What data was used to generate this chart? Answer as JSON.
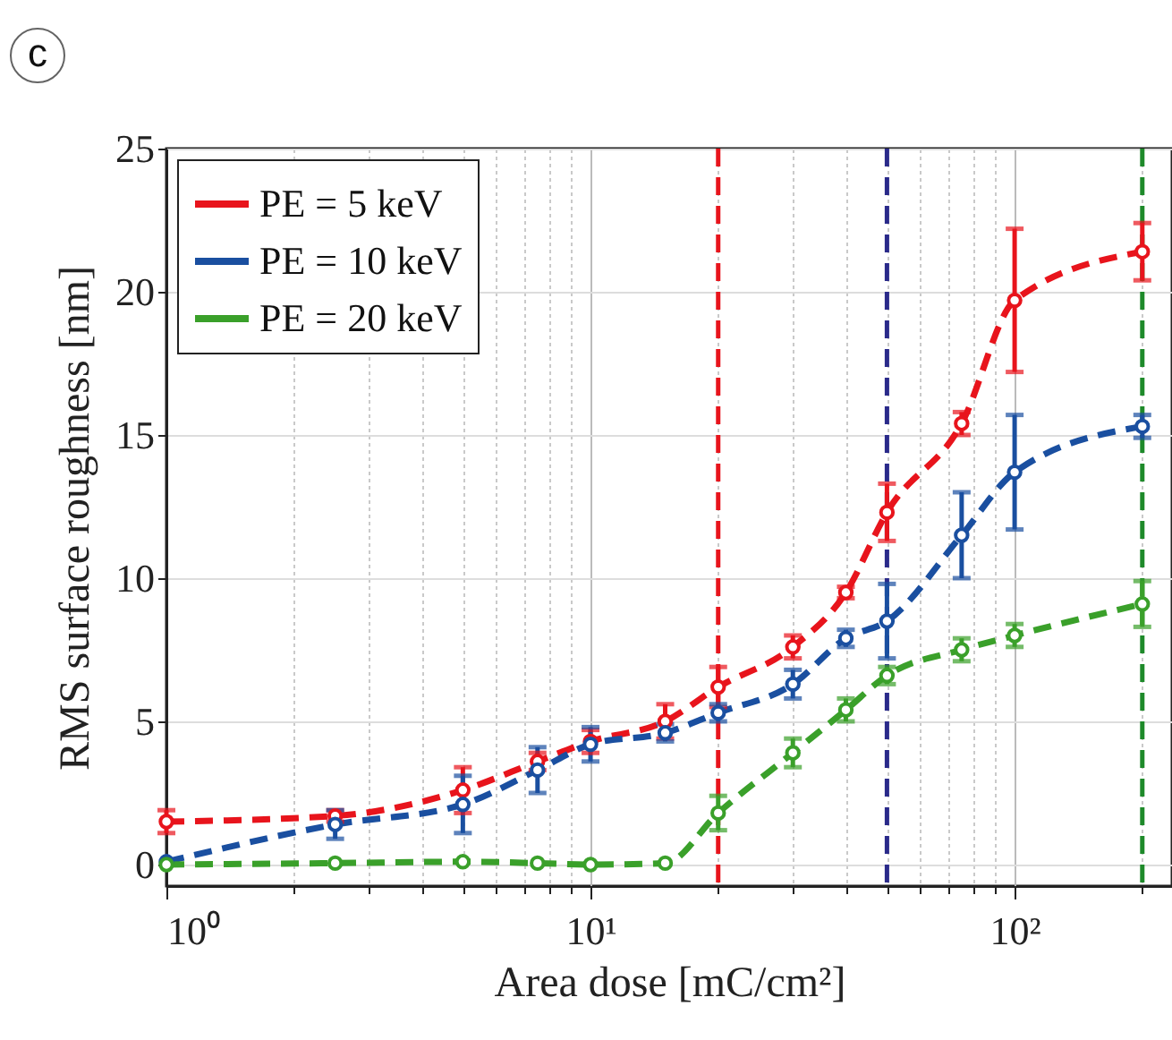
{
  "chart_data": {
    "type": "line",
    "xlabel": "Area dose [mC/cm²]",
    "ylabel": "RMS surface roughness [nm]",
    "annotations": [
      "c"
    ],
    "x": [
      1,
      2.5,
      5,
      7.5,
      10,
      15,
      20,
      30,
      40,
      50,
      75,
      100,
      200
    ],
    "series": [
      {
        "name": "PE =   5 keV",
        "color": "#e8141c",
        "values": [
          1.5,
          1.7,
          2.6,
          3.6,
          4.3,
          5.0,
          6.2,
          7.6,
          9.5,
          12.3,
          15.4,
          19.7,
          21.4
        ],
        "errors": [
          0.4,
          0.2,
          0.8,
          0.3,
          0.4,
          0.6,
          0.7,
          0.4,
          0.2,
          1.0,
          0.4,
          2.5,
          1.0
        ]
      },
      {
        "name": "PE = 10 keV",
        "color": "#1a4fa0",
        "values": [
          0.1,
          1.4,
          2.1,
          3.3,
          4.2,
          4.6,
          5.3,
          6.3,
          7.9,
          8.5,
          11.5,
          13.7,
          15.3
        ],
        "errors": [
          null,
          0.5,
          1.0,
          0.8,
          0.6,
          0.3,
          0.3,
          0.5,
          0.3,
          1.3,
          1.5,
          2.0,
          0.4
        ]
      },
      {
        "name": "PE = 20 keV",
        "color": "#3aa02a",
        "values": [
          0,
          0.05,
          0.1,
          0.05,
          0,
          0.05,
          1.8,
          3.9,
          5.4,
          6.6,
          7.5,
          8.0,
          9.1
        ],
        "errors": [
          null,
          null,
          null,
          null,
          null,
          null,
          0.6,
          0.5,
          0.4,
          0.3,
          0.4,
          0.4,
          0.8
        ]
      }
    ],
    "ref_lines": [
      {
        "axis": "x",
        "value": 20,
        "color": "#e8141c",
        "line_style": "dashed"
      },
      {
        "axis": "x",
        "value": 50,
        "color": "#2a2a8a",
        "line_style": "dashed"
      },
      {
        "axis": "x",
        "value": 200,
        "color": "#1e8a2a",
        "line_style": "dashed"
      }
    ],
    "log": "x",
    "xlim": [
      1,
      235
    ],
    "ylim": [
      -0.75,
      25
    ],
    "xticks": [
      {
        "value": 1,
        "label": "10⁰"
      },
      {
        "value": 2,
        "label": null
      },
      {
        "value": 3,
        "label": null
      },
      {
        "value": 4,
        "label": null
      },
      {
        "value": 5,
        "label": null
      },
      {
        "value": 6,
        "label": null
      },
      {
        "value": 7,
        "label": null
      },
      {
        "value": 8,
        "label": null
      },
      {
        "value": 9,
        "label": null
      },
      {
        "value": 10,
        "label": "10¹"
      },
      {
        "value": 20,
        "label": null
      },
      {
        "value": 30,
        "label": null
      },
      {
        "value": 40,
        "label": null
      },
      {
        "value": 50,
        "label": null
      },
      {
        "value": 60,
        "label": null
      },
      {
        "value": 70,
        "label": null
      },
      {
        "value": 80,
        "label": null
      },
      {
        "value": 90,
        "label": null
      },
      {
        "value": 100,
        "label": "10²"
      },
      {
        "value": 200,
        "label": null
      }
    ],
    "yticks": [
      0,
      5,
      10,
      15,
      20,
      25
    ],
    "grid": true,
    "legend": "top left",
    "marker": "circle",
    "line_style": "dashed"
  }
}
